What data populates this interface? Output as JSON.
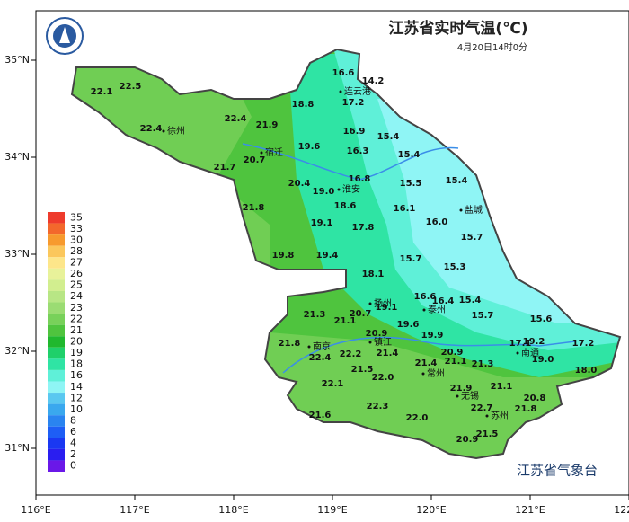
{
  "header": {
    "title": "江苏省实时气温(℃)",
    "subtitle": "4月20日14时0分"
  },
  "axes": {
    "x_ticks": [
      "116°E",
      "117°E",
      "118°E",
      "119°E",
      "120°E",
      "121°E",
      "122°E"
    ],
    "y_ticks": [
      "35°N",
      "34°N",
      "33°N",
      "32°N",
      "31°N"
    ]
  },
  "legend": [
    {
      "label": "35",
      "color": "#ee3b2c"
    },
    {
      "label": "33",
      "color": "#f3682c"
    },
    {
      "label": "30",
      "color": "#f79a2e"
    },
    {
      "label": "28",
      "color": "#fbc75c"
    },
    {
      "label": "27",
      "color": "#fde68a"
    },
    {
      "label": "26",
      "color": "#e8f29a"
    },
    {
      "label": "25",
      "color": "#d2ee8f"
    },
    {
      "label": "24",
      "color": "#b8e685"
    },
    {
      "label": "23",
      "color": "#9bdc73"
    },
    {
      "label": "22",
      "color": "#78d15a"
    },
    {
      "label": "21",
      "color": "#4fc43e"
    },
    {
      "label": "20",
      "color": "#20b82e"
    },
    {
      "label": "19",
      "color": "#1fd06a"
    },
    {
      "label": "18",
      "color": "#2fe4a4"
    },
    {
      "label": "16",
      "color": "#5ff0d8"
    },
    {
      "label": "14",
      "color": "#8ff5f5"
    },
    {
      "label": "12",
      "color": "#5ac8f0"
    },
    {
      "label": "10",
      "color": "#3aa8ee"
    },
    {
      "label": "8",
      "color": "#2a84f0"
    },
    {
      "label": "6",
      "color": "#1e5ef5"
    },
    {
      "label": "4",
      "color": "#1a38f2"
    },
    {
      "label": "2",
      "color": "#2a1ef0"
    },
    {
      "label": "0",
      "color": "#6a18e8"
    }
  ],
  "cities": [
    "连云港",
    "徐州",
    "宿迁",
    "淮安",
    "盐城",
    "扬州",
    "泰州",
    "南京",
    "镇江",
    "南通",
    "常州",
    "无锡",
    "苏州"
  ],
  "stations": [
    "22.1",
    "22.5",
    "22.4",
    "22.4",
    "21.9",
    "18.8",
    "16.6",
    "14.2",
    "17.2",
    "16.9",
    "15.4",
    "19.6",
    "16.3",
    "15.4",
    "20.7",
    "21.7",
    "20.4",
    "19.0",
    "16.8",
    "15.5",
    "15.4",
    "21.8",
    "18.6",
    "16.1",
    "19.1",
    "16.0",
    "17.8",
    "15.7",
    "19.8",
    "19.4",
    "15.7",
    "15.3",
    "18.1",
    "16.6",
    "16.4",
    "15.4",
    "19.1",
    "21.3",
    "20.7",
    "15.7",
    "15.6",
    "21.1",
    "19.6",
    "19.9",
    "20.9",
    "21.8",
    "17.1",
    "19.2",
    "17.2",
    "20.9",
    "22.4",
    "22.2",
    "21.4",
    "21.1",
    "21.3",
    "19.0",
    "18.0",
    "21.4",
    "21.5",
    "22.0",
    "22.1",
    "21.9",
    "21.1",
    "20.8",
    "22.3",
    "22.7",
    "21.8",
    "21.6",
    "22.0",
    "21.5",
    "20.9"
  ],
  "footer": {
    "credit": "江苏省气象台"
  }
}
